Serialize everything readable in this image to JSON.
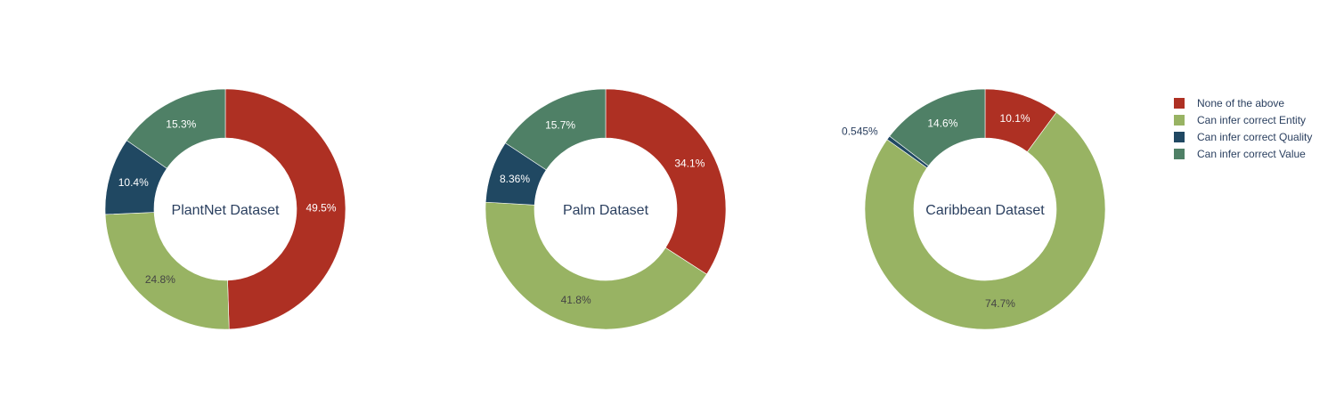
{
  "chart_data": [
    {
      "type": "pie",
      "hole": true,
      "center_label": "PlantNet Dataset",
      "labels": [
        "None of the above",
        "Can infer correct Entity",
        "Can infer correct Quality",
        "Can infer correct Value"
      ],
      "values": [
        49.5,
        24.8,
        10.4,
        15.3
      ],
      "value_labels": [
        "49.5%",
        "24.8%",
        "10.4%",
        "15.3%"
      ]
    },
    {
      "type": "pie",
      "hole": true,
      "center_label": "Palm Dataset",
      "labels": [
        "None of the above",
        "Can infer correct Entity",
        "Can infer correct Quality",
        "Can infer correct Value"
      ],
      "values": [
        34.1,
        41.8,
        8.36,
        15.7
      ],
      "value_labels": [
        "34.1%",
        "41.8%",
        "8.36%",
        "15.7%"
      ]
    },
    {
      "type": "pie",
      "hole": true,
      "center_label": "Caribbean Dataset",
      "labels": [
        "None of the above",
        "Can infer correct Entity",
        "Can infer correct Quality",
        "Can infer correct Value"
      ],
      "values": [
        10.1,
        74.7,
        0.545,
        14.6
      ],
      "value_labels": [
        "10.1%",
        "74.7%",
        "0.545%",
        "14.6%"
      ]
    }
  ],
  "legend": {
    "placement": "right",
    "items": [
      {
        "label": "None of the above",
        "color": "#ae3023"
      },
      {
        "label": "Can infer correct Entity",
        "color": "#98b363"
      },
      {
        "label": "Can infer correct Quality",
        "color": "#204862"
      },
      {
        "label": "Can infer correct Value",
        "color": "#4f8066"
      }
    ]
  },
  "colors": [
    "#ae3023",
    "#98b363",
    "#204862",
    "#4f8066"
  ]
}
